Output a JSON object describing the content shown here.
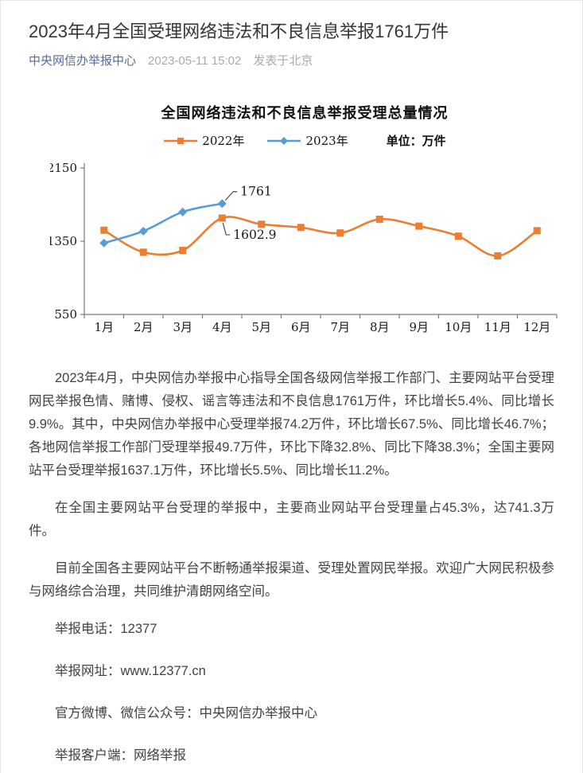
{
  "page": {
    "title": "2023年4月全国受理网络违法和不良信息举报1761万件",
    "account": "中央网信办举报中心",
    "publish_time": "2023-05-11 15:02",
    "publish_location": "发表于北京",
    "link_color": "#576b95"
  },
  "chart_data": {
    "type": "line",
    "title": "全国网络违法和不良信息举报受理总量情况",
    "unit_label": "单位：万件",
    "categories": [
      "1月",
      "2月",
      "3月",
      "4月",
      "5月",
      "6月",
      "7月",
      "8月",
      "9月",
      "10月",
      "11月",
      "12月"
    ],
    "ylim": [
      550,
      2150
    ],
    "yticks": [
      2150,
      1350,
      550
    ],
    "grid": false,
    "legend_position": "top",
    "axis_color": "#7a7a7a",
    "series": [
      {
        "name": "2022年",
        "color": "#ED7D31",
        "marker": "square",
        "values": [
          1470,
          1230,
          1250,
          1602.9,
          1535,
          1500,
          1440,
          1590,
          1515,
          1405,
          1190,
          1465
        ]
      },
      {
        "name": "2023年",
        "color": "#5B9BD5",
        "marker": "diamond",
        "values": [
          1330,
          1460,
          1670,
          1761
        ]
      }
    ],
    "annotations": [
      {
        "series": "2023年",
        "category_index": 3,
        "label": "1761",
        "placement": "above-right"
      },
      {
        "series": "2022年",
        "category_index": 3,
        "label": "1602.9",
        "placement": "below-right"
      }
    ]
  },
  "paragraphs": [
    "2023年4月，中央网信办举报中心指导全国各级网信举报工作部门、主要网站平台受理网民举报色情、赌博、侵权、谣言等违法和不良信息1761万件，环比增长5.4%、同比增长9.9%。其中，中央网信办举报中心受理举报74.2万件，环比增长67.5%、同比增长46.7%；各地网信举报工作部门受理举报49.7万件，环比下降32.8%、同比下降38.3%；全国主要网站平台受理举报1637.1万件，环比增长5.5%、同比增长11.2%。",
    "在全国主要网站平台受理的举报中，主要商业网站平台受理量占45.3%，达741.3万件。",
    "目前全国各主要网站平台不断畅通举报渠道、受理处置网民举报。欢迎广大网民积极参与网络综合治理，共同维护清朗网络空间。"
  ],
  "contacts": [
    "举报电话：12377",
    "举报网址：www.12377.cn",
    "官方微博、微信公众号：中央网信办举报中心",
    "举报客户端：网络举报"
  ]
}
